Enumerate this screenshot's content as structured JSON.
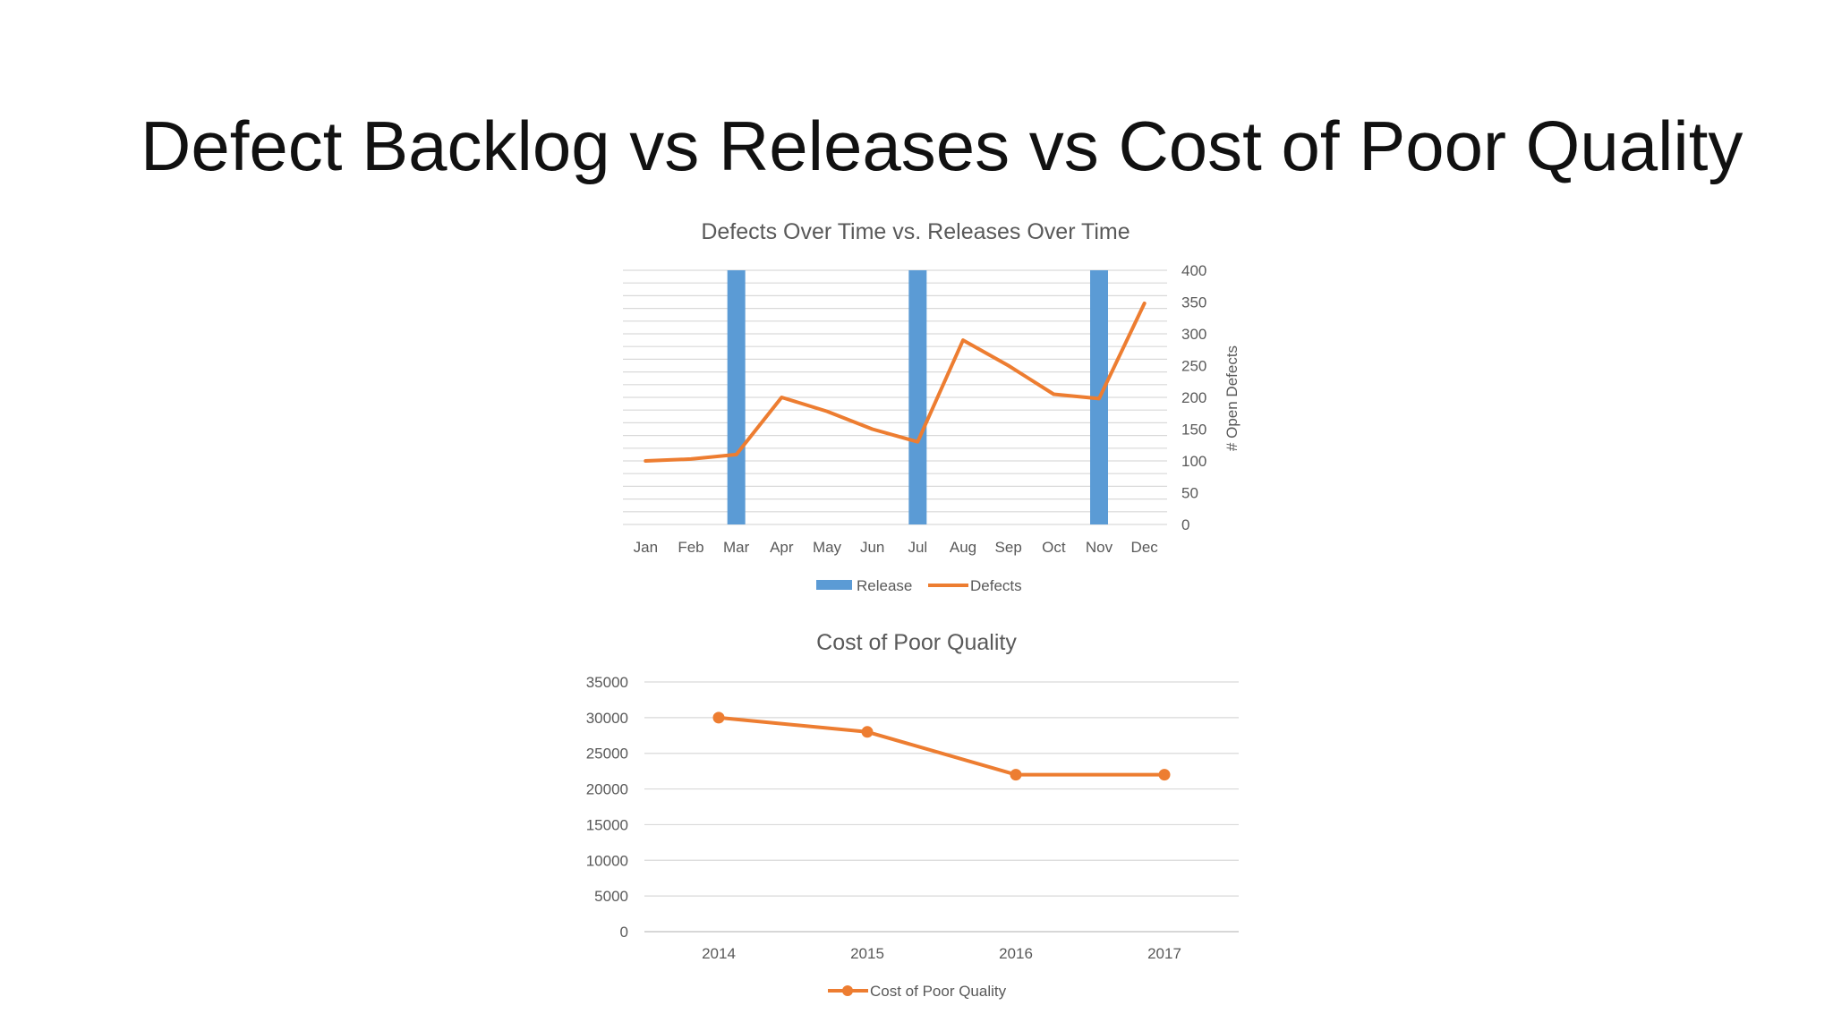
{
  "slide": {
    "title": "Defect Backlog vs Releases vs Cost of Poor Quality"
  },
  "chart_data": [
    {
      "type": "bar+line",
      "title": "Defects Over Time vs. Releases Over Time",
      "categories": [
        "Jan",
        "Feb",
        "Mar",
        "Apr",
        "May",
        "Jun",
        "Jul",
        "Aug",
        "Sep",
        "Oct",
        "Nov",
        "Dec"
      ],
      "series": [
        {
          "name": "Release",
          "type": "bar",
          "color": "#5B9BD5",
          "values": [
            0,
            0,
            1,
            0,
            0,
            0,
            1,
            0,
            0,
            0,
            1,
            0
          ]
        },
        {
          "name": "Defects",
          "type": "line",
          "color": "#ED7D31",
          "values": [
            100,
            103,
            110,
            200,
            178,
            150,
            130,
            290,
            250,
            205,
            198,
            348
          ]
        }
      ],
      "ylabel_right": "# Open Defects",
      "ylim_right": [
        0,
        400
      ],
      "yticks_right": [
        0,
        50,
        100,
        150,
        200,
        250,
        300,
        350,
        400
      ],
      "grid": true,
      "legend_position": "bottom"
    },
    {
      "type": "line",
      "title": "Cost of Poor Quality",
      "categories": [
        "2014",
        "2015",
        "2016",
        "2017"
      ],
      "series": [
        {
          "name": "Cost of Poor Quality",
          "color": "#ED7D31",
          "markers": true,
          "values": [
            30000,
            28000,
            22000,
            22000
          ]
        }
      ],
      "ylim": [
        0,
        35000
      ],
      "yticks": [
        0,
        5000,
        10000,
        15000,
        20000,
        25000,
        30000,
        35000
      ],
      "grid": true,
      "legend_position": "bottom"
    }
  ]
}
